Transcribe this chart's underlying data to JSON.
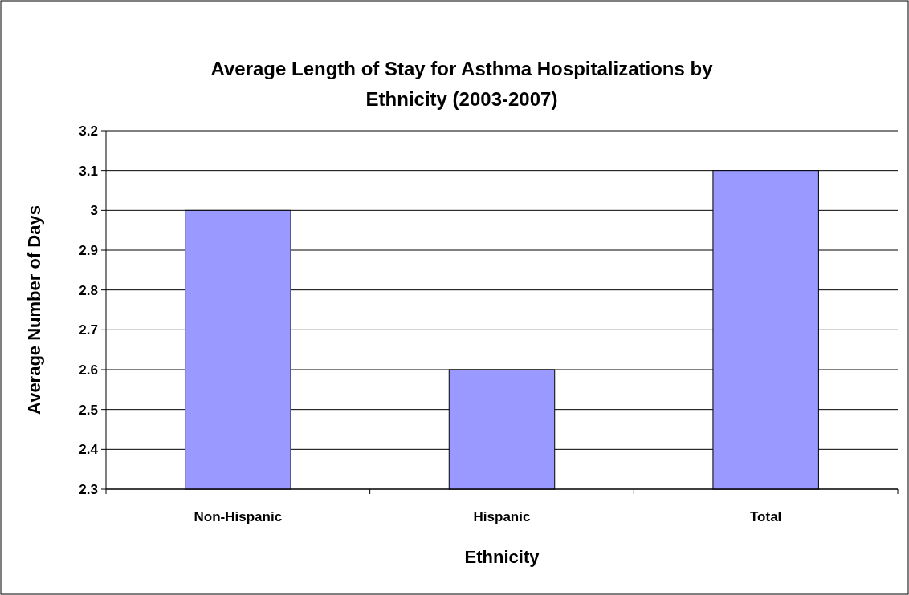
{
  "chart_data": {
    "type": "bar",
    "title": "Average Length of Stay for Asthma Hospitalizations by Ethnicity (2003-2007)",
    "xlabel": "Ethnicity",
    "ylabel": "Average Number of Days",
    "categories": [
      "Non-Hispanic",
      "Hispanic",
      "Total"
    ],
    "values": [
      3.0,
      2.6,
      3.1
    ],
    "color": "#9999ff",
    "ylim": [
      2.3,
      3.2
    ],
    "yticks": [
      {
        "value": 2.3,
        "label": "2.3"
      },
      {
        "value": 2.4,
        "label": "2.4"
      },
      {
        "value": 2.5,
        "label": "2.5"
      },
      {
        "value": 2.6,
        "label": "2.6"
      },
      {
        "value": 2.7,
        "label": "2.7"
      },
      {
        "value": 2.8,
        "label": "2.8"
      },
      {
        "value": 2.9,
        "label": "2.9"
      },
      {
        "value": 3,
        "label": "3"
      },
      {
        "value": 3.1,
        "label": "3.1"
      },
      {
        "value": 3.2,
        "label": "3.2"
      }
    ],
    "grid": "y"
  }
}
